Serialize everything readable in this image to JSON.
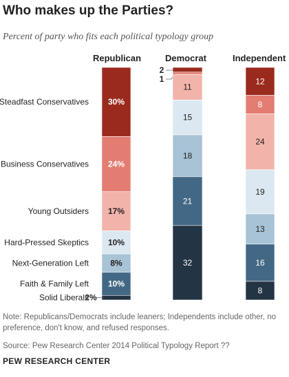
{
  "header": {
    "title": "Who makes up the Parties?",
    "subtitle": "Percent of party who fits each political typology group"
  },
  "footer": {
    "note": "Note: Republicans/Democrats include leaners; Independents include other, no preference, don't know, and refused responses.",
    "source": "Source: Pew Research Center 2014 Political Typology Report ??",
    "brand": "PEW RESEARCH CENTER"
  },
  "colors": {
    "Steadfast Conservatives": "#9b2a1e",
    "Business Conservatives": "#e37d72",
    "Young Outsiders": "#f2b3aa",
    "Hard-Pressed Skeptics": "#dce8f1",
    "Next-Generation Left": "#a8c2d6",
    "Faith & Family Left": "#436885",
    "Solid Liberals": "#233444"
  },
  "chart_data": {
    "type": "bar",
    "stacked": true,
    "orientation": "vertical",
    "categories": [
      "Republican",
      "Democrat",
      "Independent"
    ],
    "ylim": [
      0,
      100
    ],
    "series": [
      {
        "name": "Steadfast Conservatives",
        "values": [
          30,
          2,
          12
        ],
        "labels": [
          "30%",
          "2",
          "12"
        ]
      },
      {
        "name": "Business Conservatives",
        "values": [
          24,
          1,
          8
        ],
        "labels": [
          "24%",
          "1",
          "8"
        ]
      },
      {
        "name": "Young Outsiders",
        "values": [
          17,
          11,
          24
        ],
        "labels": [
          "17%",
          "11",
          "24"
        ]
      },
      {
        "name": "Hard-Pressed Skeptics",
        "values": [
          10,
          15,
          19
        ],
        "labels": [
          "10%",
          "15",
          "19"
        ]
      },
      {
        "name": "Next-Generation Left",
        "values": [
          8,
          18,
          13
        ],
        "labels": [
          "8%",
          "18",
          "13"
        ]
      },
      {
        "name": "Faith & Family Left",
        "values": [
          10,
          21,
          16
        ],
        "labels": [
          "10%",
          "21",
          "16"
        ]
      },
      {
        "name": "Solid Liberals",
        "values": [
          2,
          32,
          8
        ],
        "labels": [
          "2%",
          "32",
          "8"
        ]
      }
    ]
  }
}
